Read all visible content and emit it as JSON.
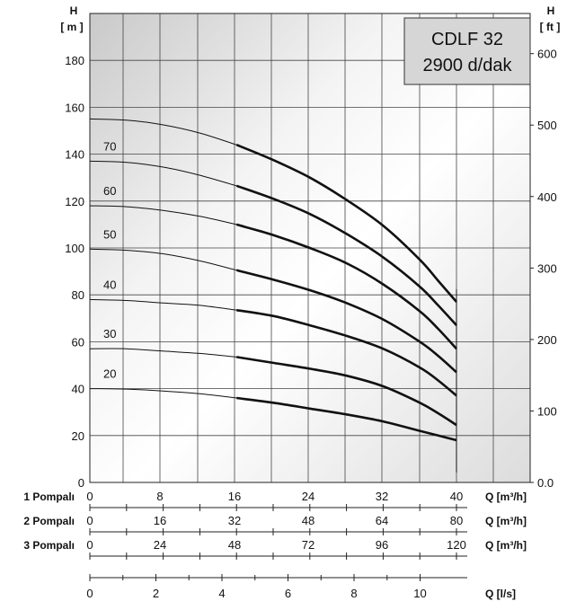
{
  "chart_data": {
    "type": "line",
    "title_lines": [
      "CDLF 32",
      "2900 d/dak"
    ],
    "left_axis": {
      "label": "H",
      "unit": "[ m ]",
      "ticks": [
        0,
        20,
        40,
        60,
        80,
        100,
        120,
        140,
        160,
        180
      ],
      "ylim": [
        0,
        200
      ]
    },
    "right_axis": {
      "label": "H",
      "unit": "[ ft ]",
      "ticks": [
        "0.0",
        "100",
        "200",
        "300",
        "400",
        "500",
        "600"
      ]
    },
    "x_axes": [
      {
        "label": "1 Pompalı",
        "qlabel": "Q  [m³/h]",
        "ticks": [
          "0",
          "8",
          "16",
          "24",
          "32",
          "40"
        ]
      },
      {
        "label": "2 Pompalı",
        "qlabel": "Q  [m³/h]",
        "ticks": [
          "0",
          "16",
          "32",
          "48",
          "64",
          "80"
        ]
      },
      {
        "label": "3 Pompalı",
        "qlabel": "Q  [m³/h]",
        "ticks": [
          "0",
          "24",
          "48",
          "72",
          "96",
          "120"
        ]
      },
      {
        "label": "",
        "qlabel": "Q  [l/s]",
        "ticks": [
          "0",
          "2",
          "4",
          "6",
          "8",
          "10"
        ]
      }
    ],
    "x_unit": "m³/h (1 Pompalı)",
    "xlim": [
      0,
      44
    ],
    "grid": true,
    "series": [
      {
        "name": "20",
        "bold_from": 16,
        "x": [
          0,
          4,
          8,
          12,
          16,
          20,
          24,
          28,
          32,
          36,
          38,
          40
        ],
        "y": [
          40,
          39.8,
          39,
          37.8,
          36,
          34,
          31.5,
          29,
          26,
          22,
          20,
          18
        ]
      },
      {
        "name": "30",
        "bold_from": 16,
        "x": [
          0,
          4,
          8,
          12,
          16,
          20,
          24,
          28,
          32,
          36,
          38,
          40
        ],
        "y": [
          57,
          57,
          56,
          55,
          53.5,
          51,
          48.5,
          45.5,
          41,
          34,
          29.5,
          24.5
        ]
      },
      {
        "name": "40",
        "bold_from": 16,
        "x": [
          0,
          4,
          8,
          12,
          16,
          20,
          24,
          28,
          32,
          36,
          38,
          40
        ],
        "y": [
          78,
          77.6,
          76.5,
          75.5,
          73.5,
          71,
          67,
          62.5,
          57,
          49,
          43.5,
          37
        ]
      },
      {
        "name": "50",
        "bold_from": 16,
        "x": [
          0,
          4,
          8,
          12,
          16,
          20,
          24,
          28,
          32,
          36,
          38,
          40
        ],
        "y": [
          99.5,
          99,
          97.5,
          94.5,
          90.5,
          86.5,
          82,
          76.5,
          69.5,
          60,
          54,
          47
        ]
      },
      {
        "name": "60",
        "bold_from": 16,
        "x": [
          0,
          4,
          8,
          12,
          16,
          20,
          24,
          28,
          32,
          36,
          38,
          40
        ],
        "y": [
          118,
          117.6,
          116,
          113.5,
          110,
          105.5,
          100,
          93.5,
          84.5,
          73,
          65.5,
          57
        ]
      },
      {
        "name": "70",
        "bold_from": 16,
        "x": [
          0,
          4,
          8,
          12,
          16,
          20,
          24,
          28,
          32,
          36,
          38,
          40
        ],
        "y": [
          137,
          136.5,
          134.5,
          131,
          126.5,
          121,
          114.5,
          106,
          96,
          83.5,
          75.5,
          67
        ]
      },
      {
        "name": "",
        "bold_from": 16,
        "x": [
          0,
          4,
          8,
          12,
          16,
          20,
          24,
          28,
          32,
          36,
          38,
          40
        ],
        "y": [
          155,
          154.5,
          152.5,
          149,
          144,
          137.5,
          130,
          120.5,
          109.5,
          95,
          86,
          77
        ]
      }
    ]
  }
}
